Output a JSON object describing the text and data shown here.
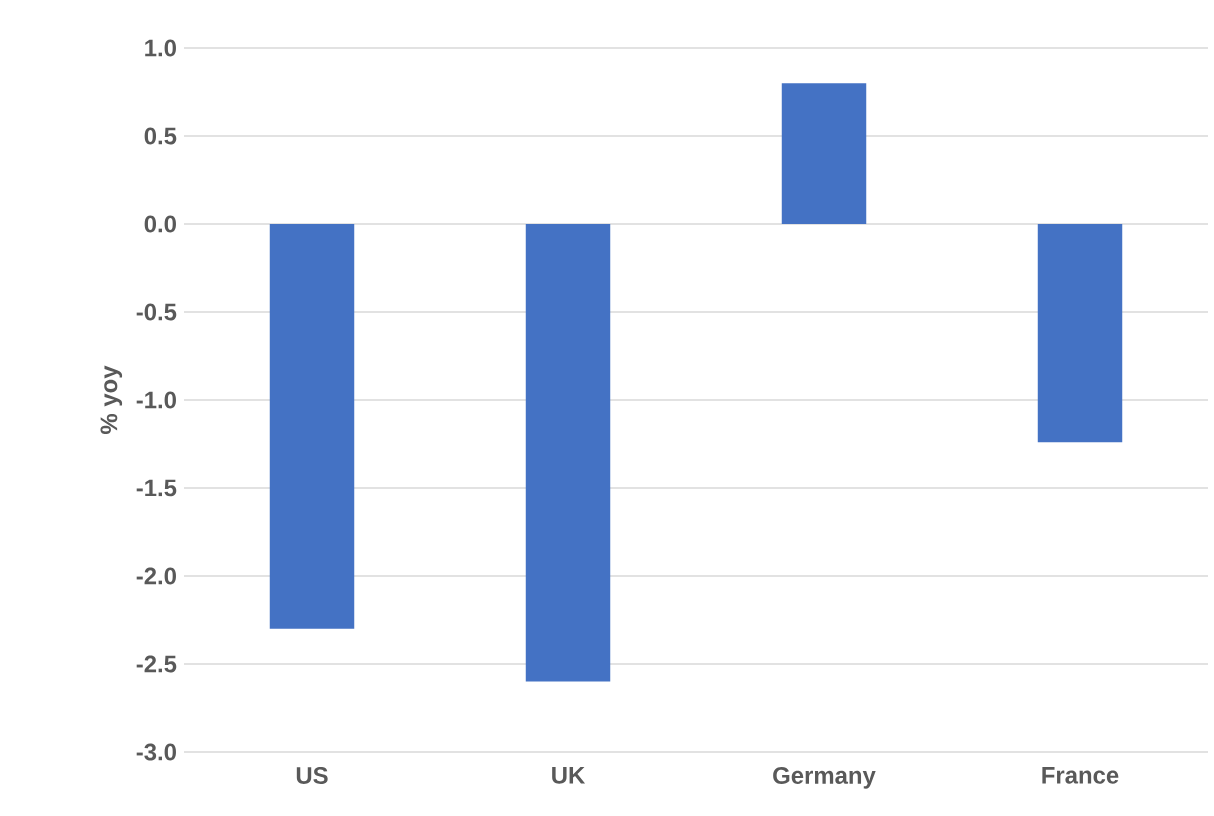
{
  "chart_data": {
    "type": "bar",
    "ylabel": "% yoy",
    "categories": [
      "US",
      "UK",
      "Germany",
      "France"
    ],
    "values": [
      -2.3,
      -2.6,
      0.8,
      -1.24
    ],
    "color": "#4472c4",
    "ylim": [
      -3,
      1
    ],
    "yticks": [
      {
        "value": 1,
        "label": "1.0"
      },
      {
        "value": 0.5,
        "label": "0.5"
      },
      {
        "value": 0,
        "label": "0.0"
      },
      {
        "value": -0.5,
        "label": "-0.5"
      },
      {
        "value": -1,
        "label": "-1.0"
      },
      {
        "value": -1.5,
        "label": "-1.5"
      },
      {
        "value": -2,
        "label": "-2.0"
      },
      {
        "value": -2.5,
        "label": "-2.5"
      },
      {
        "value": -3,
        "label": "-3.0"
      }
    ],
    "grid": "y"
  }
}
